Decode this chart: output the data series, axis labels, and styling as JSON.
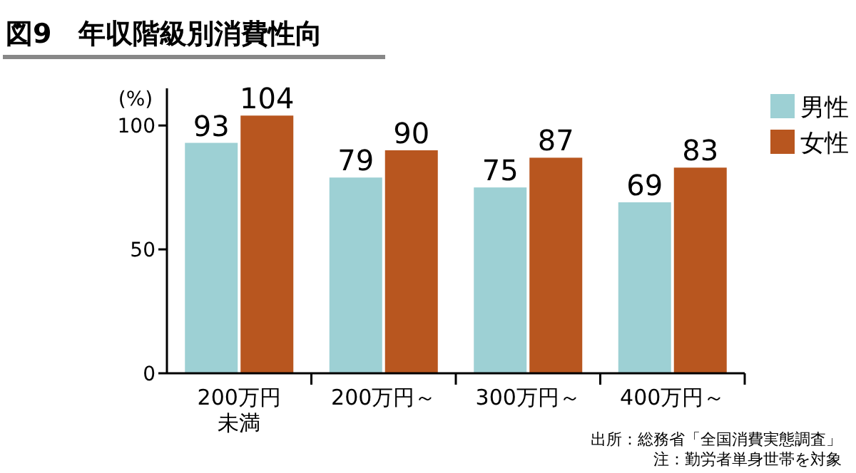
{
  "chart_data": {
    "type": "bar",
    "title": "図9　年収階級別消費性向",
    "ylabel": "(%)",
    "categories": [
      "200万円未満",
      "200万円～",
      "300万円～",
      "400万円～"
    ],
    "series": [
      {
        "name": "男性",
        "color": "#9dd0d4",
        "values": [
          93,
          79,
          75,
          69
        ]
      },
      {
        "name": "女性",
        "color": "#b8561f",
        "values": [
          104,
          90,
          87,
          83
        ]
      }
    ],
    "ylim": [
      0,
      115
    ],
    "yticks": [
      0,
      50,
      100
    ],
    "data_labels": true,
    "legend": "top right",
    "grid": false,
    "annotations": [
      "出所：総務省「全国消費実態調査」",
      "注：勤労者単身世帯を対象"
    ]
  }
}
